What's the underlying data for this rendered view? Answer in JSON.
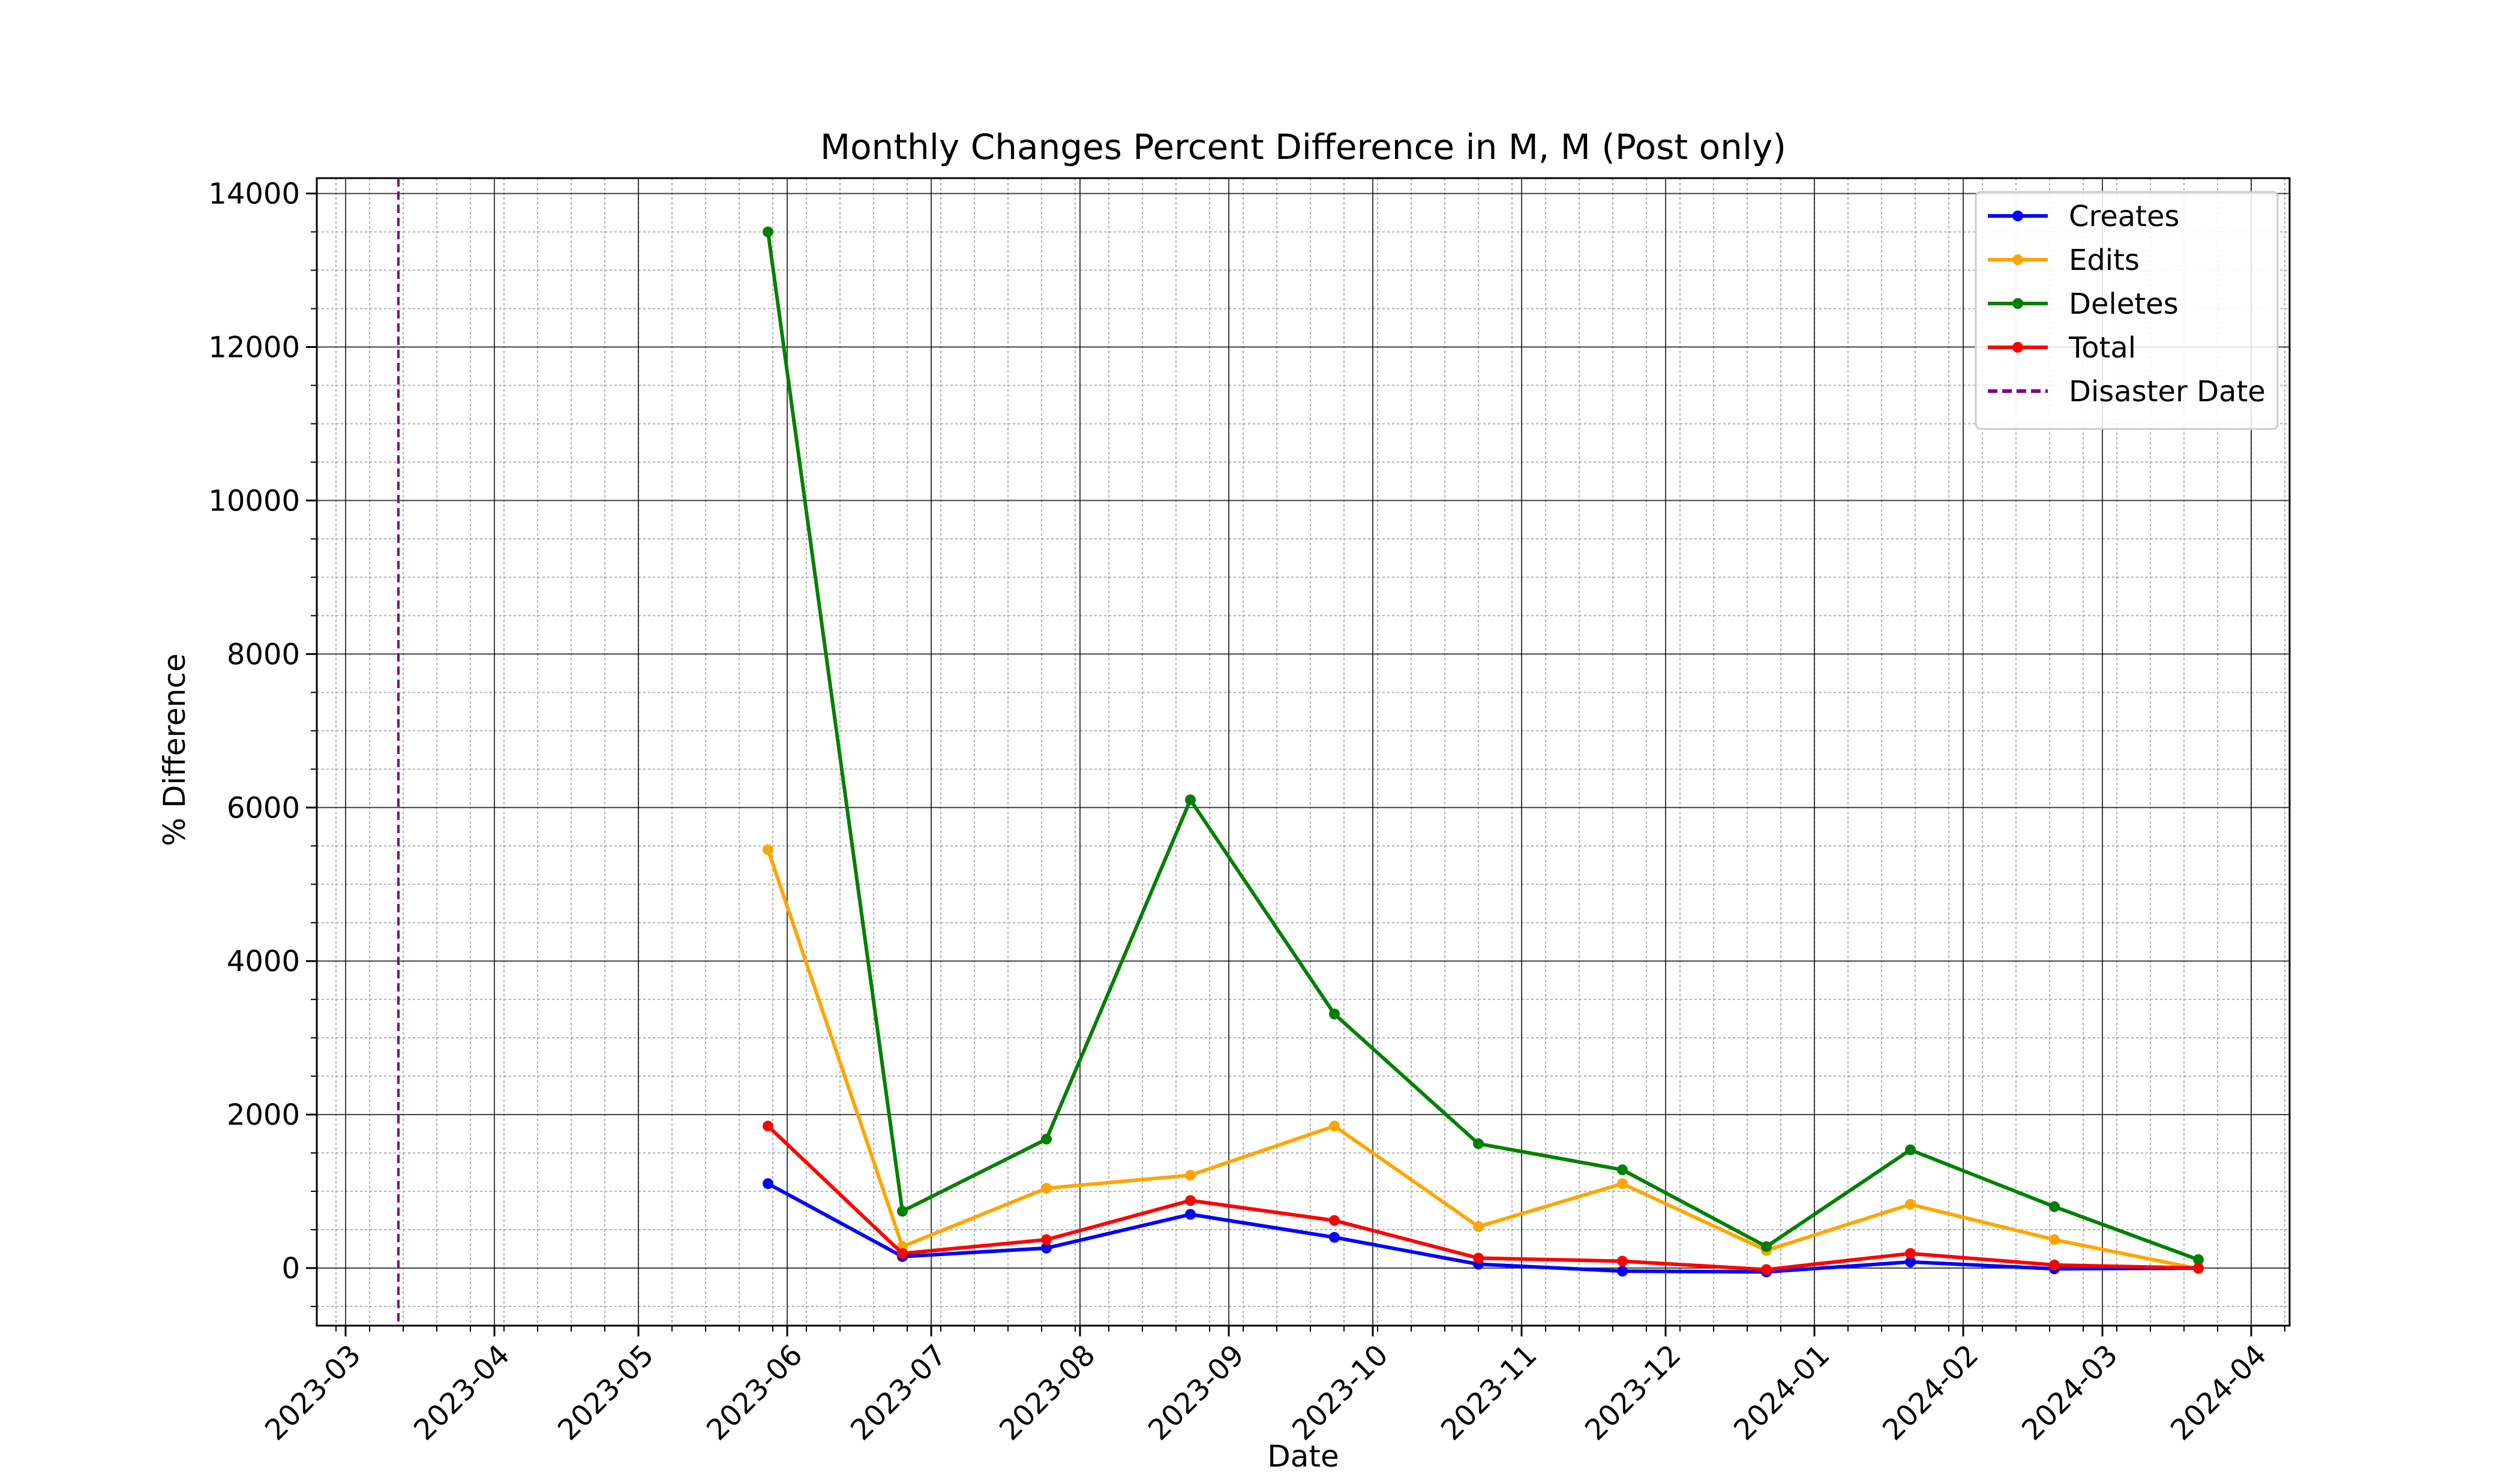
{
  "chart_data": {
    "type": "line",
    "title": "Monthly Changes Percent Difference in M, M (Post only)",
    "xlabel": "Date",
    "ylabel": "% Difference",
    "x_ticks": [
      "2023-03",
      "2023-04",
      "2023-05",
      "2023-06",
      "2023-07",
      "2023-08",
      "2023-09",
      "2023-10",
      "2023-11",
      "2023-12",
      "2024-01",
      "2024-02",
      "2024-03",
      "2024-04"
    ],
    "y_ticks": [
      0,
      2000,
      4000,
      6000,
      8000,
      10000,
      12000,
      14000
    ],
    "ylim": [
      -750,
      14200
    ],
    "xlim": [
      "2023-02-23",
      "2024-04-09"
    ],
    "grid": true,
    "legend_position": "top-right",
    "x": [
      "2023-05-28",
      "2023-06-25",
      "2023-07-25",
      "2023-08-24",
      "2023-09-23",
      "2023-10-23",
      "2023-11-22",
      "2023-12-22",
      "2024-01-21",
      "2024-02-20",
      "2024-03-21"
    ],
    "series": [
      {
        "name": "Creates",
        "color": "#0000ff",
        "values": [
          1100,
          150,
          260,
          700,
          400,
          50,
          -40,
          -50,
          80,
          -10,
          0
        ]
      },
      {
        "name": "Edits",
        "color": "#ffa500",
        "values": [
          5450,
          280,
          1040,
          1210,
          1850,
          540,
          1100,
          230,
          830,
          370,
          -10
        ]
      },
      {
        "name": "Deletes",
        "color": "#008000",
        "values": [
          13500,
          740,
          1680,
          6100,
          3310,
          1620,
          1280,
          280,
          1540,
          800,
          110
        ]
      },
      {
        "name": "Total",
        "color": "#ff0000",
        "values": [
          1850,
          190,
          370,
          880,
          620,
          130,
          90,
          -20,
          190,
          40,
          0
        ]
      }
    ],
    "disaster_line": {
      "name": "Disaster Date",
      "date": "2023-03-12",
      "color": "#800080"
    }
  }
}
